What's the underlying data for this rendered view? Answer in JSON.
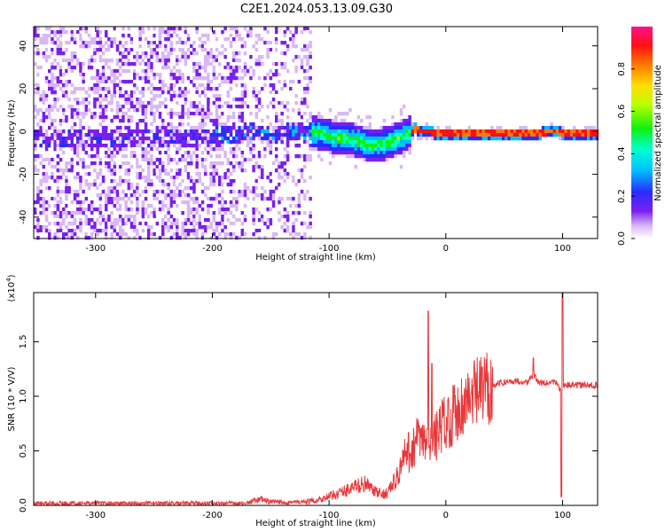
{
  "title": "C2E1.2024.053.13.09.G30",
  "chart_data": [
    {
      "type": "heatmap",
      "xlabel": "Height of straight line (km)",
      "ylabel": "Frequency (Hz)",
      "xlim": [
        -353,
        130
      ],
      "ylim": [
        -50,
        49
      ],
      "xticks": [
        -300,
        -200,
        -100,
        0,
        100
      ],
      "xtick_labels": [
        "-300",
        "-200",
        "-100",
        "0",
        "100"
      ],
      "yticks": [
        -40,
        -20,
        0,
        20,
        40
      ],
      "ytick_labels": [
        "-40",
        "-20",
        "0",
        "20",
        "40"
      ],
      "colorbar": {
        "label": "Normalized spectral amplitude",
        "range": [
          0,
          1
        ],
        "ticks": [
          0,
          0.2,
          0.4,
          0.6,
          0.8
        ],
        "tick_labels": [
          "0.0",
          "0.2",
          "0.4",
          "0.6",
          "0.8"
        ]
      },
      "ridge": {
        "x": [
          -225,
          -180,
          -165,
          -150,
          -130,
          -110,
          -95,
          -80,
          -70,
          -60,
          -50,
          -40,
          -33,
          -28,
          -20,
          -10,
          0,
          40,
          80,
          90,
          100,
          130
        ],
        "y": [
          -2,
          -1,
          1,
          -1,
          1,
          0,
          -2,
          -3,
          -5,
          -6,
          -4,
          -2,
          0,
          2,
          1,
          0,
          0,
          0,
          0,
          1,
          0,
          0
        ]
      },
      "grid": false
    },
    {
      "type": "line",
      "xlabel": "Height of straight line (km)",
      "ylabel": "SNR (10 * V/V)",
      "multiplier_label": "(x10",
      "multiplier_exp": "4",
      "xlim": [
        -353,
        130
      ],
      "ylim": [
        0,
        1.95
      ],
      "xticks": [
        -300,
        -200,
        -100,
        0,
        100
      ],
      "xtick_labels": [
        "-300",
        "-200",
        "-100",
        "0",
        "100"
      ],
      "yticks": [
        0,
        0.5,
        1.0,
        1.5
      ],
      "ytick_labels": [
        "0.0",
        "0.5",
        "1.0",
        "1.5"
      ],
      "color": "#e8383b",
      "series": [
        {
          "x": [
            -353,
            -300,
            -250,
            -200,
            -170,
            -160,
            -150,
            -120,
            -110,
            -100,
            -90,
            -80,
            -70,
            -60,
            -55,
            -50,
            -45,
            -40,
            -35,
            -30,
            -25,
            -20,
            -15,
            -10,
            -5,
            0,
            5,
            10,
            20,
            30,
            40,
            50,
            60,
            70,
            75,
            80,
            90,
            95,
            98,
            100,
            102,
            105,
            110,
            120,
            130
          ],
          "y": [
            0.02,
            0.02,
            0.02,
            0.02,
            0.02,
            0.06,
            0.03,
            0.03,
            0.05,
            0.08,
            0.12,
            0.16,
            0.2,
            0.12,
            0.1,
            0.12,
            0.2,
            0.3,
            0.45,
            0.5,
            0.6,
            0.58,
            0.55,
            0.6,
            0.7,
            0.78,
            0.82,
            0.88,
            0.98,
            1.05,
            1.1,
            1.13,
            1.14,
            1.13,
            1.2,
            1.12,
            1.12,
            1.13,
            1.05,
            1.1,
            1.11,
            1.1,
            1.1,
            1.1,
            1.1
          ]
        }
      ],
      "spikes": [
        {
          "x": -15,
          "y": 1.78
        },
        {
          "x": -12,
          "y": 1.3
        },
        {
          "x": 75,
          "y": 1.35
        },
        {
          "x": 100,
          "y": 1.95
        },
        {
          "x": 99,
          "y": 0.08
        }
      ],
      "grid": false
    }
  ]
}
